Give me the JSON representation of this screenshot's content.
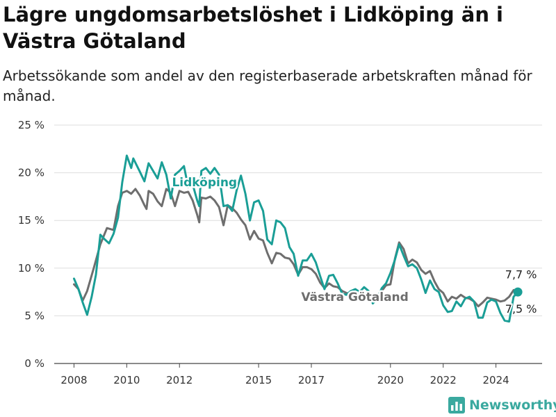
{
  "header": {
    "title": "Lägre ungdomsarbetslöshet i Lidköping än i Västra Götaland",
    "subtitle": "Arbetssökande som andel av den registerbaserade arbetskraften månad för månad."
  },
  "brand": {
    "name": "Newsworthy",
    "icon": "bar-chart-logo-icon",
    "color": "#3aa99f"
  },
  "colors": {
    "lidkoping": "#1a9e96",
    "vastra_gotaland": "#6e6e6e",
    "grid": "#dddddd"
  },
  "chart_data": {
    "type": "line",
    "title": "Lägre ungdomsarbetslöshet i Lidköping än i Västra Götaland",
    "subtitle": "Arbetssökande som andel av den registerbaserade arbetskraften månad för månad.",
    "xlabel": "",
    "ylabel": "",
    "x_unit": "year (decimal)",
    "xlim": [
      2007.25,
      2025.75
    ],
    "ylim": [
      0,
      25
    ],
    "grid": true,
    "legend": "inline labels",
    "x_ticks": [
      {
        "value": 2008,
        "label": "2008"
      },
      {
        "value": 2010,
        "label": "2010"
      },
      {
        "value": 2012,
        "label": "2012"
      },
      {
        "value": 2015,
        "label": "2015"
      },
      {
        "value": 2017,
        "label": "2017"
      },
      {
        "value": 2020,
        "label": "2020"
      },
      {
        "value": 2022,
        "label": "2022"
      },
      {
        "value": 2024,
        "label": "2024"
      }
    ],
    "y_ticks": [
      {
        "value": 0,
        "label": "0 %"
      },
      {
        "value": 5,
        "label": "5 %"
      },
      {
        "value": 10,
        "label": "10 %"
      },
      {
        "value": 15,
        "label": "15 %"
      },
      {
        "value": 20,
        "label": "20 %"
      },
      {
        "value": 25,
        "label": "25 %"
      }
    ],
    "series": [
      {
        "name": "Västra Götaland",
        "color": "#6e6e6e",
        "end_label": "7,7 %",
        "points": [
          [
            2008.0,
            8.3
          ],
          [
            2008.17,
            7.8
          ],
          [
            2008.33,
            6.6
          ],
          [
            2008.5,
            7.6
          ],
          [
            2008.75,
            10.0
          ],
          [
            2009.0,
            12.5
          ],
          [
            2009.25,
            14.2
          ],
          [
            2009.5,
            14.0
          ],
          [
            2009.67,
            16.5
          ],
          [
            2009.83,
            17.9
          ],
          [
            2010.0,
            18.1
          ],
          [
            2010.17,
            17.8
          ],
          [
            2010.33,
            18.3
          ],
          [
            2010.5,
            17.6
          ],
          [
            2010.67,
            16.6
          ],
          [
            2010.75,
            16.2
          ],
          [
            2010.83,
            18.1
          ],
          [
            2011.0,
            17.8
          ],
          [
            2011.17,
            17.0
          ],
          [
            2011.33,
            16.5
          ],
          [
            2011.5,
            18.3
          ],
          [
            2011.67,
            17.9
          ],
          [
            2011.83,
            16.5
          ],
          [
            2012.0,
            18.1
          ],
          [
            2012.17,
            17.9
          ],
          [
            2012.33,
            18.0
          ],
          [
            2012.5,
            17.1
          ],
          [
            2012.67,
            15.6
          ],
          [
            2012.75,
            14.8
          ],
          [
            2012.83,
            17.4
          ],
          [
            2013.0,
            17.3
          ],
          [
            2013.17,
            17.5
          ],
          [
            2013.33,
            17.1
          ],
          [
            2013.5,
            16.4
          ],
          [
            2013.67,
            14.5
          ],
          [
            2013.83,
            16.6
          ],
          [
            2014.0,
            16.3
          ],
          [
            2014.17,
            15.8
          ],
          [
            2014.33,
            15.1
          ],
          [
            2014.5,
            14.5
          ],
          [
            2014.67,
            13.0
          ],
          [
            2014.83,
            13.9
          ],
          [
            2015.0,
            13.1
          ],
          [
            2015.17,
            12.9
          ],
          [
            2015.33,
            11.6
          ],
          [
            2015.5,
            10.5
          ],
          [
            2015.67,
            11.6
          ],
          [
            2015.83,
            11.5
          ],
          [
            2016.0,
            11.1
          ],
          [
            2016.17,
            11.0
          ],
          [
            2016.33,
            10.4
          ],
          [
            2016.5,
            9.3
          ],
          [
            2016.67,
            10.1
          ],
          [
            2016.83,
            10.1
          ],
          [
            2017.0,
            9.9
          ],
          [
            2017.17,
            9.4
          ],
          [
            2017.33,
            8.5
          ],
          [
            2017.5,
            7.9
          ],
          [
            2017.67,
            8.4
          ],
          [
            2017.83,
            8.1
          ],
          [
            2018.0,
            8.0
          ],
          [
            2018.17,
            7.6
          ],
          [
            2018.33,
            7.4
          ],
          [
            2018.5,
            7.2
          ],
          [
            2018.67,
            7.3
          ],
          [
            2018.83,
            7.4
          ],
          [
            2019.0,
            7.2
          ],
          [
            2019.17,
            7.0
          ],
          [
            2019.33,
            7.0
          ],
          [
            2019.5,
            7.1
          ],
          [
            2019.67,
            7.6
          ],
          [
            2019.83,
            8.2
          ],
          [
            2020.0,
            8.3
          ],
          [
            2020.17,
            11.0
          ],
          [
            2020.33,
            12.7
          ],
          [
            2020.5,
            12.0
          ],
          [
            2020.67,
            10.5
          ],
          [
            2020.83,
            10.9
          ],
          [
            2021.0,
            10.6
          ],
          [
            2021.17,
            9.8
          ],
          [
            2021.33,
            9.4
          ],
          [
            2021.5,
            9.7
          ],
          [
            2021.67,
            8.6
          ],
          [
            2021.83,
            7.8
          ],
          [
            2022.0,
            7.4
          ],
          [
            2022.17,
            6.5
          ],
          [
            2022.33,
            7.0
          ],
          [
            2022.5,
            6.8
          ],
          [
            2022.67,
            7.2
          ],
          [
            2022.83,
            6.9
          ],
          [
            2023.0,
            6.8
          ],
          [
            2023.17,
            6.5
          ],
          [
            2023.33,
            6.0
          ],
          [
            2023.5,
            6.4
          ],
          [
            2023.67,
            6.9
          ],
          [
            2023.83,
            6.8
          ],
          [
            2024.0,
            6.7
          ],
          [
            2024.17,
            6.5
          ],
          [
            2024.33,
            6.6
          ],
          [
            2024.5,
            7.0
          ],
          [
            2024.67,
            7.7
          ],
          [
            2024.83,
            7.7
          ]
        ]
      },
      {
        "name": "Lidköping",
        "color": "#1a9e96",
        "end_label": "7,5 %",
        "points": [
          [
            2008.0,
            8.9
          ],
          [
            2008.17,
            7.8
          ],
          [
            2008.33,
            6.4
          ],
          [
            2008.5,
            5.1
          ],
          [
            2008.67,
            7.0
          ],
          [
            2008.83,
            9.3
          ],
          [
            2009.0,
            13.5
          ],
          [
            2009.17,
            13.0
          ],
          [
            2009.33,
            12.6
          ],
          [
            2009.5,
            13.6
          ],
          [
            2009.67,
            15.3
          ],
          [
            2009.83,
            19.0
          ],
          [
            2010.0,
            21.8
          ],
          [
            2010.17,
            20.5
          ],
          [
            2010.25,
            21.5
          ],
          [
            2010.5,
            20.1
          ],
          [
            2010.67,
            19.1
          ],
          [
            2010.83,
            21.0
          ],
          [
            2011.0,
            20.2
          ],
          [
            2011.17,
            19.4
          ],
          [
            2011.33,
            21.1
          ],
          [
            2011.5,
            19.8
          ],
          [
            2011.67,
            17.3
          ],
          [
            2011.83,
            19.8
          ],
          [
            2012.0,
            20.2
          ],
          [
            2012.17,
            20.7
          ],
          [
            2012.33,
            18.5
          ],
          [
            2012.5,
            18.8
          ],
          [
            2012.67,
            17.1
          ],
          [
            2012.75,
            16.5
          ],
          [
            2012.83,
            20.2
          ],
          [
            2013.0,
            20.5
          ],
          [
            2013.17,
            19.9
          ],
          [
            2013.33,
            20.5
          ],
          [
            2013.5,
            19.8
          ],
          [
            2013.67,
            16.5
          ],
          [
            2013.83,
            16.6
          ],
          [
            2014.0,
            16.0
          ],
          [
            2014.17,
            18.2
          ],
          [
            2014.33,
            19.7
          ],
          [
            2014.5,
            17.8
          ],
          [
            2014.67,
            15.0
          ],
          [
            2014.83,
            16.9
          ],
          [
            2015.0,
            17.1
          ],
          [
            2015.17,
            16.0
          ],
          [
            2015.33,
            13.0
          ],
          [
            2015.5,
            12.5
          ],
          [
            2015.67,
            15.0
          ],
          [
            2015.83,
            14.8
          ],
          [
            2016.0,
            14.2
          ],
          [
            2016.17,
            12.2
          ],
          [
            2016.33,
            11.5
          ],
          [
            2016.5,
            9.2
          ],
          [
            2016.67,
            10.8
          ],
          [
            2016.83,
            10.8
          ],
          [
            2017.0,
            11.5
          ],
          [
            2017.17,
            10.6
          ],
          [
            2017.33,
            9.2
          ],
          [
            2017.5,
            7.8
          ],
          [
            2017.67,
            9.2
          ],
          [
            2017.83,
            9.3
          ],
          [
            2018.0,
            8.4
          ],
          [
            2018.17,
            7.3
          ],
          [
            2018.33,
            7.2
          ],
          [
            2018.5,
            7.6
          ],
          [
            2018.67,
            7.8
          ],
          [
            2018.83,
            7.5
          ],
          [
            2019.0,
            8.0
          ],
          [
            2019.17,
            7.6
          ],
          [
            2019.33,
            6.3
          ],
          [
            2019.5,
            6.8
          ],
          [
            2019.67,
            7.9
          ],
          [
            2019.83,
            8.4
          ],
          [
            2020.0,
            9.5
          ],
          [
            2020.17,
            10.9
          ],
          [
            2020.33,
            12.5
          ],
          [
            2020.5,
            11.3
          ],
          [
            2020.67,
            10.2
          ],
          [
            2020.83,
            10.4
          ],
          [
            2021.0,
            10.0
          ],
          [
            2021.17,
            8.8
          ],
          [
            2021.33,
            7.4
          ],
          [
            2021.5,
            8.7
          ],
          [
            2021.67,
            7.8
          ],
          [
            2021.83,
            7.5
          ],
          [
            2022.0,
            6.1
          ],
          [
            2022.17,
            5.4
          ],
          [
            2022.33,
            5.5
          ],
          [
            2022.5,
            6.5
          ],
          [
            2022.67,
            6.0
          ],
          [
            2022.83,
            6.8
          ],
          [
            2023.0,
            7.0
          ],
          [
            2023.17,
            6.5
          ],
          [
            2023.33,
            4.8
          ],
          [
            2023.5,
            4.8
          ],
          [
            2023.67,
            6.4
          ],
          [
            2023.83,
            6.7
          ],
          [
            2024.0,
            6.5
          ],
          [
            2024.17,
            5.3
          ],
          [
            2024.33,
            4.5
          ],
          [
            2024.5,
            4.4
          ],
          [
            2024.67,
            7.0
          ],
          [
            2024.83,
            7.5
          ]
        ]
      }
    ]
  }
}
